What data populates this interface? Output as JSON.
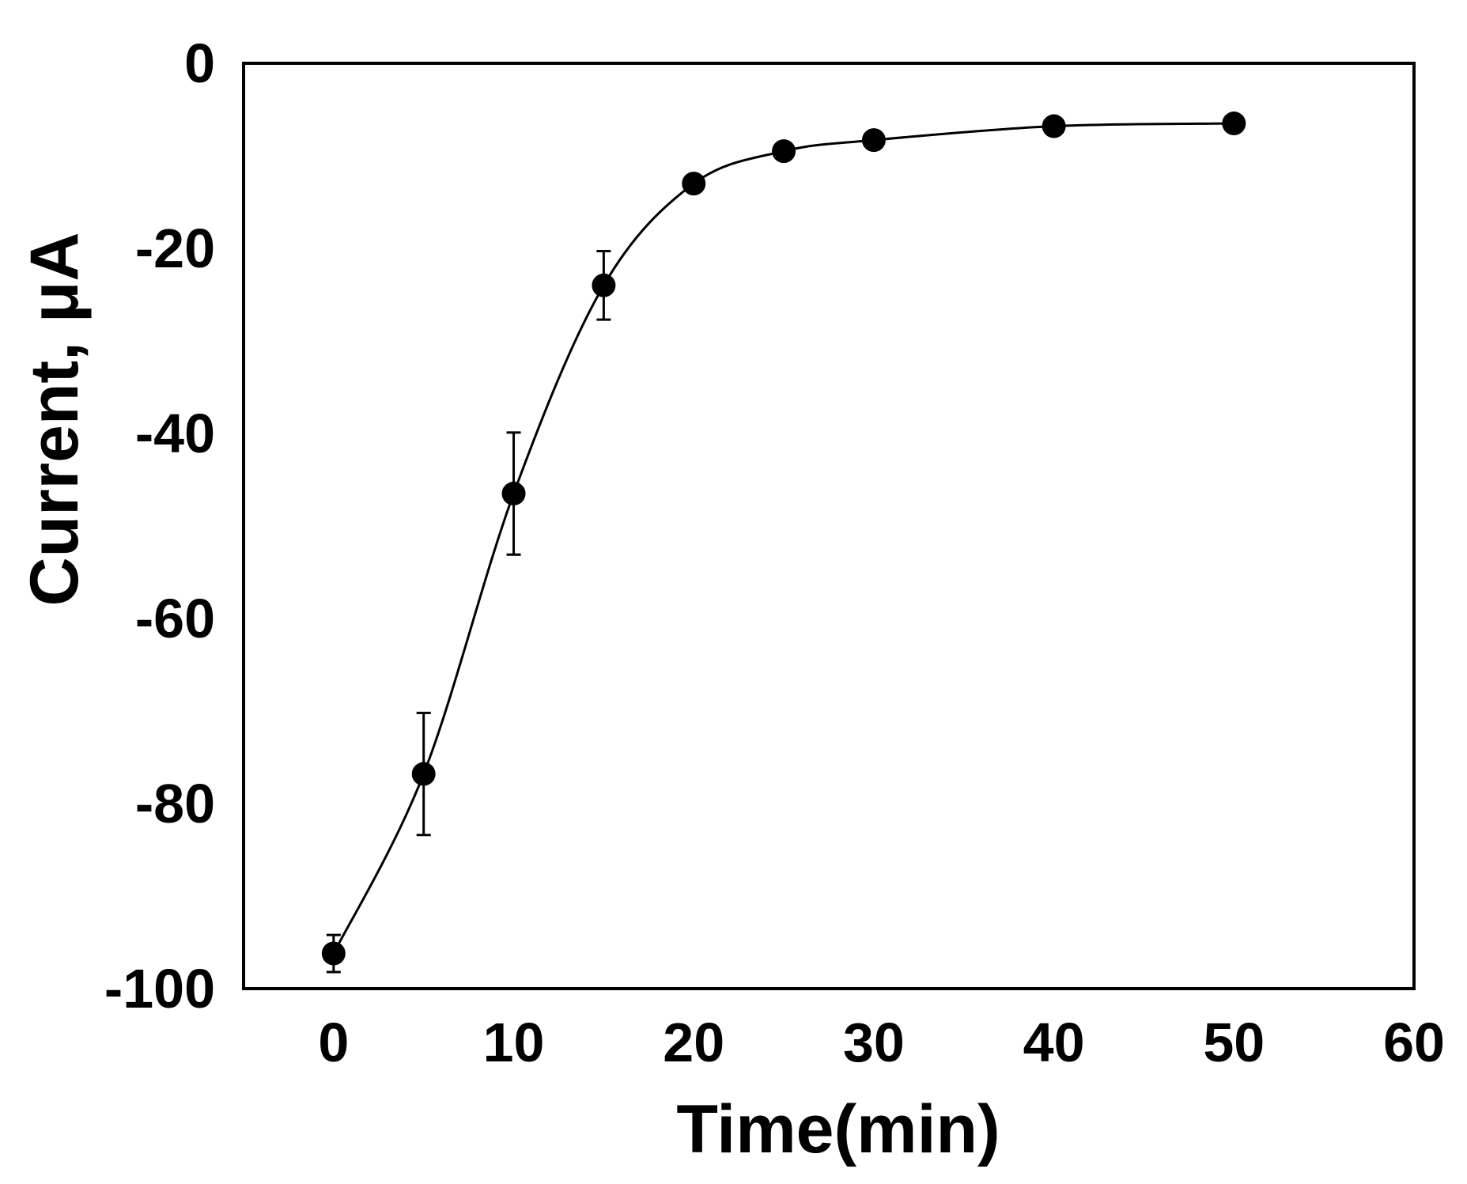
{
  "chart_data": {
    "type": "line",
    "title": "",
    "xlabel": "Time(min)",
    "ylabel": "Current, μA",
    "xlim": [
      -5,
      60
    ],
    "ylim": [
      -100,
      0
    ],
    "xticks": [
      0,
      10,
      20,
      30,
      40,
      50,
      60
    ],
    "yticks": [
      0,
      -20,
      -40,
      -60,
      -80,
      -100
    ],
    "xtick_labels": [
      "0",
      "10",
      "20",
      "30",
      "40",
      "50",
      "60"
    ],
    "ytick_labels": [
      "0",
      "-20",
      "-40",
      "-60",
      "-80",
      "-100"
    ],
    "grid": false,
    "legend": "none",
    "series": [
      {
        "x": [
          0,
          5,
          10,
          15,
          20,
          25,
          30,
          40,
          50
        ],
        "y": [
          -96.2,
          -76.8,
          -46.5,
          -24.0,
          -13.0,
          -9.5,
          -8.3,
          -6.8,
          -6.5
        ],
        "error": [
          2.0,
          6.6,
          6.6,
          3.7,
          0,
          0,
          0,
          0,
          0
        ],
        "color": "#000000",
        "marker": "filled-circle"
      }
    ]
  }
}
